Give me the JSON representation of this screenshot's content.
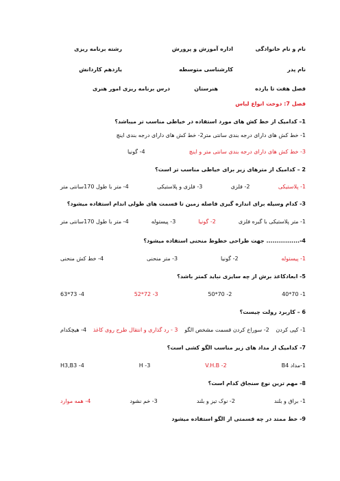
{
  "correct_color": "#e0202a",
  "header": {
    "rows": [
      [
        "نام و نام خانوادگی",
        "اداره آموزش و پرورش",
        "رشته برنامه ریزی"
      ],
      [
        "نام پدر",
        "کارشناسی متوسطه",
        "یازدهم کاردانش"
      ],
      [
        "فصل هفت تا یازده",
        "هنرستان",
        "درس برنامه ریزی امور هنری"
      ]
    ]
  },
  "section_title": "فصل 7: دوخت انواع لباس",
  "questions": [
    {
      "text": "1– کدامیک از خط کش های مورد استفاده در خیاطی مناسب تر میباشد؟",
      "option_rows": [
        [
          {
            "text": "1- خط کش های دارای درجه بندی سانتی متر"
          },
          {
            "text": "2- خط کش های دارای درجه بندی اینچ"
          }
        ],
        [
          {
            "text": "3- خط کش های دارای درجه بندی سانتی متر و اینچ",
            "correct": true
          },
          {
            "text": "4- گونیا"
          }
        ]
      ]
    },
    {
      "text": "2 – کدامیک از مترهای زیر برای خیاطی مناسب تر است؟",
      "option_rows": [
        [
          {
            "text": "1- پلاستیکی",
            "correct": true
          },
          {
            "text": "2- فلزی"
          },
          {
            "text": "3- فلزی و پلاستیکی"
          },
          {
            "text": "4- متر با طول 170سانتی متر"
          }
        ]
      ]
    },
    {
      "text": "3- کدام وسیله برای اندازه گیری فاصله زمین تا قسمت های طولی اندام استفاده میشود؟",
      "option_rows": [
        [
          {
            "text": "1- متر پلاستیکی با گیره فلزی"
          },
          {
            "text": "2- گونیا",
            "correct": true
          },
          {
            "text": "3- پیستوله"
          },
          {
            "text": "4- متر با طول 170سانتی متر"
          }
        ]
      ]
    },
    {
      "text": "4-................ جهت طراحی خطوط منحنی استفاده میشود؟",
      "option_rows": [
        [
          {
            "text": "1- پیستوله",
            "correct": true
          },
          {
            "text": "2- گونیا"
          },
          {
            "text": "3- متر منحنی"
          },
          {
            "text": "4- خط کش منحنی"
          }
        ]
      ]
    },
    {
      "text": "5- ابعادکاغذ برش از چه سایزی نباید کمتر باشد؟",
      "option_rows": [
        [
          {
            "text": "1- 70*40"
          },
          {
            "text": "2- 70*50"
          },
          {
            "text": "3- 72*52",
            "correct": true
          },
          {
            "text": "4- 73*63"
          }
        ]
      ]
    },
    {
      "text": "6 – کاربرد رولت چیست؟",
      "option_rows": [
        [
          {
            "text": "1- کپی کردن"
          },
          {
            "text": "2- سوراخ کردن قسمت مشخص الگو"
          },
          {
            "text": "3 - رد گذاری و انتقال طرح روی کاغذ",
            "correct": true
          },
          {
            "text": "4- هیچکدام"
          }
        ]
      ]
    },
    {
      "text": "7- کدامیک از مداد های زیر مناسب الگو کشی است؟",
      "option_rows": [
        [
          {
            "text": "1-مداد B4"
          },
          {
            "text": "2- V.H.B",
            "correct": true
          },
          {
            "text": "3- H"
          },
          {
            "text": "4- H3,B3"
          }
        ]
      ]
    },
    {
      "text": "8- مهم ترین نوع سنجاق کدام است؟",
      "option_rows": [
        [
          {
            "text": "1- براق و بلند"
          },
          {
            "text": "2- نوک تیز و بلند"
          },
          {
            "text": "3- خم نشود"
          },
          {
            "text": "4- همه موارد",
            "correct": true
          }
        ]
      ]
    },
    {
      "text": "9- خط ممتد در چه قسمتی از الگو استفاده میشود",
      "option_rows": []
    }
  ]
}
